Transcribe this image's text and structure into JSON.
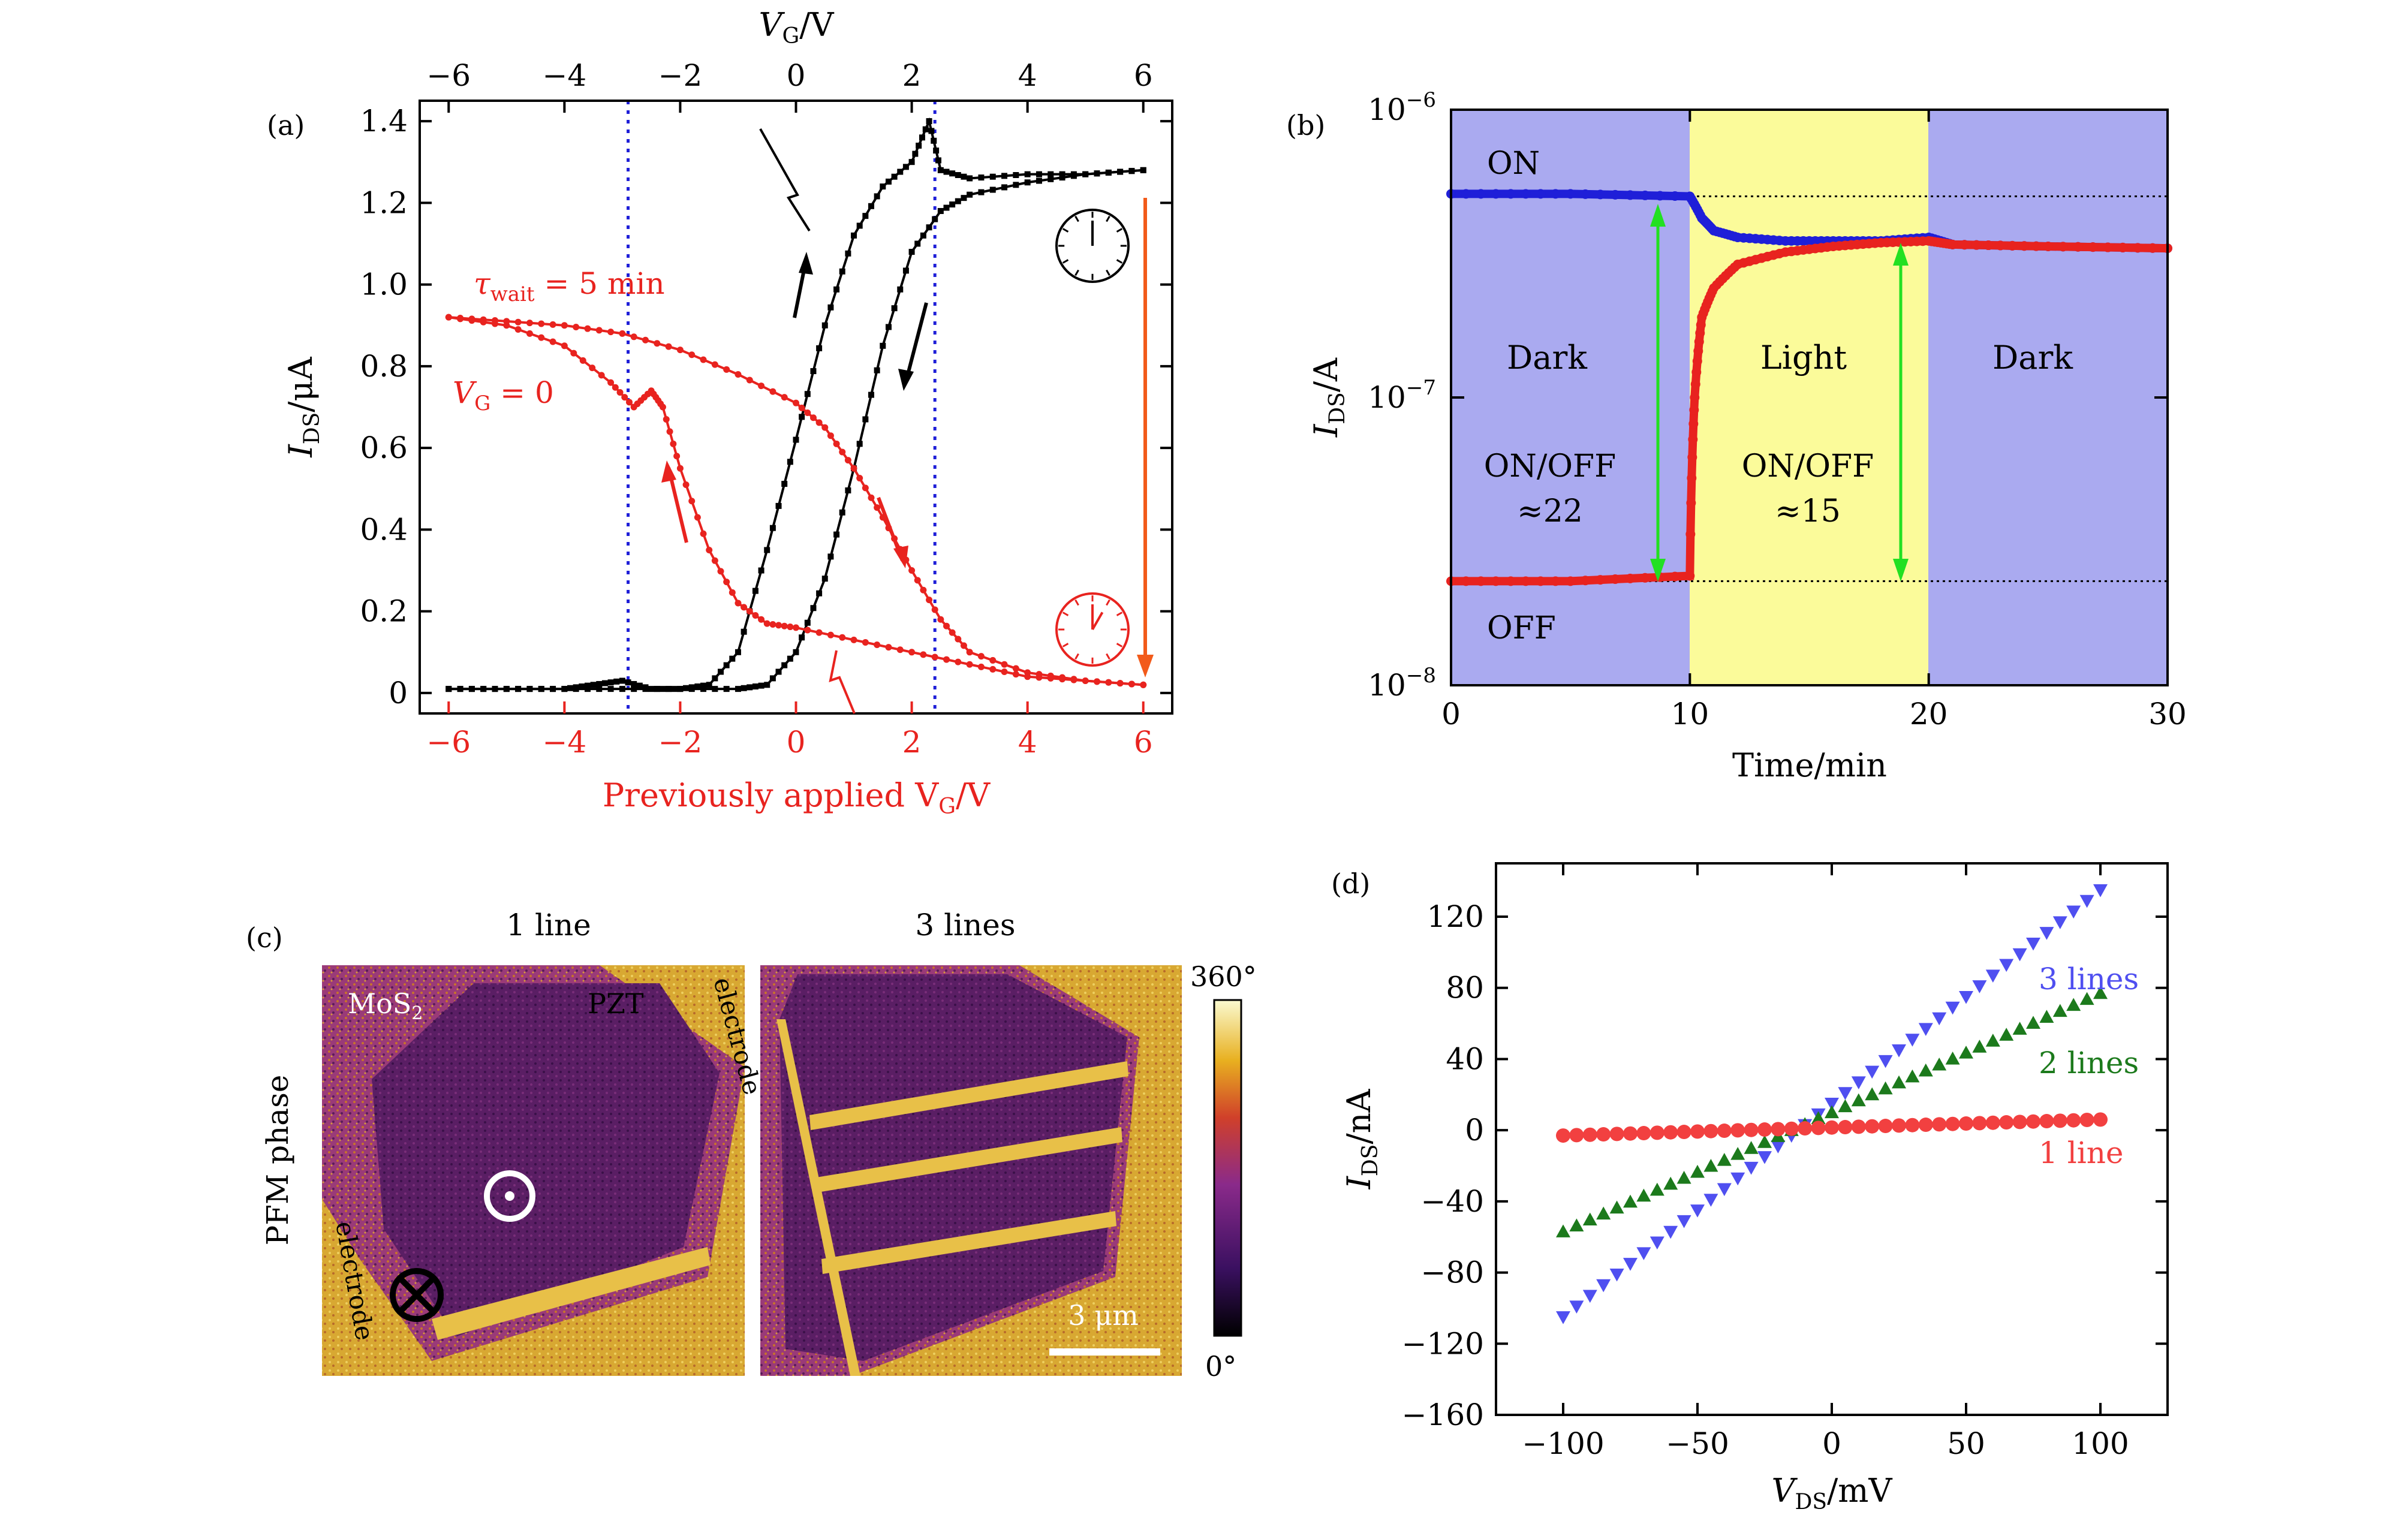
{
  "colors": {
    "black": "#000000",
    "red": "#e8231f",
    "blue_dot": "#1f1fd8",
    "green_arrow": "#22e022",
    "orange_arrow": "#f25a1a",
    "dark_bg": "#aaaaf0",
    "light_bg": "#fbfb9a",
    "series_blue": "#4f4ff0",
    "series_green": "#1c7a1c",
    "series_red": "#f24040"
  },
  "panels": {
    "a": {
      "label": "(a)",
      "top_axis_label": "V",
      "top_axis_sub": "G",
      "top_axis_unit": "/V",
      "bottom_axis_label": "Previously applied V",
      "bottom_axis_sub": "G",
      "bottom_axis_unit": "/V",
      "y_label": "I",
      "y_sub": "DS",
      "y_unit": "/μA",
      "tau_label": "τ",
      "tau_sub": "wait",
      "tau_value": " = 5 min",
      "vg_label": "V",
      "vg_sub": "G",
      "vg_value": " = 0",
      "x_ticks": [
        "−6",
        "−4",
        "−2",
        "0",
        "2",
        "4",
        "6"
      ],
      "y_ticks": [
        "0",
        "0.2",
        "0.4",
        "0.6",
        "0.8",
        "1.0",
        "1.2",
        "1.4"
      ],
      "clock_icons": [
        "clock-icon-black",
        "clock-icon-red"
      ]
    },
    "b": {
      "label": "(b)",
      "x_label": "Time/min",
      "y_label": "I",
      "y_sub": "DS",
      "y_unit": "/A",
      "x_ticks": [
        "0",
        "10",
        "20",
        "30"
      ],
      "y_ticks_base": "10",
      "y_ticks_exp": [
        "−8",
        "−7",
        "−6"
      ],
      "regions": [
        "Dark",
        "Light",
        "Dark"
      ],
      "on_label": "ON",
      "off_label": "OFF",
      "ratio1_line1": "ON/OFF",
      "ratio1_line2": "≈22",
      "ratio2_line1": "ON/OFF",
      "ratio2_line2": "≈15"
    },
    "c": {
      "label": "(c)",
      "title_left": "1 line",
      "title_right": "3 lines",
      "side_label": "PFM phase",
      "mos2_label": "MoS",
      "mos2_sub": "2",
      "pzt_label": "PZT",
      "electrode_top": "electrode",
      "electrode_bottom": "electrode",
      "scale_bar": "3 μm",
      "colorbar_max": "360°",
      "colorbar_min": "0°"
    },
    "d": {
      "label": "(d)",
      "x_label": "V",
      "x_sub": "DS",
      "x_unit": "/mV",
      "y_label": "I",
      "y_sub": "DS",
      "y_unit": "/nA",
      "x_ticks": [
        "−100",
        "−50",
        "0",
        "50",
        "100"
      ],
      "y_ticks": [
        "−160",
        "−120",
        "−80",
        "−40",
        "0",
        "40",
        "80",
        "120"
      ],
      "legend": [
        "3 lines",
        "2 lines",
        "1 line"
      ]
    }
  },
  "chart_data": [
    {
      "panel": "a",
      "type": "line",
      "xlim": [
        -6.5,
        6.5
      ],
      "ylim": [
        -0.05,
        1.45
      ],
      "vertical_lines": [
        -2.9,
        2.4
      ],
      "series": [
        {
          "color": "black",
          "x": [
            -6,
            -5,
            -4,
            -3.5,
            -3,
            -2.5,
            -2,
            -1.5,
            -1,
            -0.5,
            0,
            0.5,
            1,
            1.5,
            2,
            2.3,
            2.5,
            3,
            4,
            5,
            6
          ],
          "y": [
            0.01,
            0.01,
            0.01,
            0.02,
            0.03,
            0.01,
            0.01,
            0.02,
            0.1,
            0.35,
            0.62,
            0.9,
            1.12,
            1.24,
            1.3,
            1.4,
            1.28,
            1.26,
            1.27,
            1.27,
            1.28
          ]
        },
        {
          "color": "black",
          "x": [
            6,
            5,
            4,
            3,
            2.5,
            2,
            1.5,
            1,
            0.5,
            0,
            -0.5,
            -1,
            -2,
            -3,
            -4,
            -5,
            -6
          ],
          "y": [
            1.28,
            1.27,
            1.25,
            1.22,
            1.18,
            1.08,
            0.85,
            0.55,
            0.28,
            0.1,
            0.02,
            0.01,
            0.01,
            0.01,
            0.01,
            0.01,
            0.01
          ]
        },
        {
          "color": "red",
          "x": [
            -6,
            -5,
            -4,
            -3,
            -2,
            -1,
            0,
            0.5,
            1,
            1.5,
            2,
            2.5,
            3,
            4,
            5,
            6
          ],
          "y": [
            0.92,
            0.91,
            0.9,
            0.88,
            0.84,
            0.78,
            0.71,
            0.65,
            0.55,
            0.43,
            0.3,
            0.18,
            0.1,
            0.05,
            0.03,
            0.02
          ]
        },
        {
          "color": "red",
          "x": [
            6,
            5,
            4,
            3,
            2,
            1,
            0,
            -0.5,
            -1,
            -1.5,
            -2,
            -2.3,
            -2.5,
            -2.8,
            -3.2,
            -4,
            -5,
            -6
          ],
          "y": [
            0.02,
            0.03,
            0.04,
            0.07,
            0.1,
            0.13,
            0.16,
            0.17,
            0.22,
            0.35,
            0.55,
            0.7,
            0.74,
            0.7,
            0.76,
            0.85,
            0.9,
            0.92
          ]
        }
      ]
    },
    {
      "panel": "b",
      "type": "line",
      "y_scale": "log",
      "xlim": [
        0,
        30
      ],
      "ylim": [
        1e-08,
        1e-06
      ],
      "regions": [
        {
          "label": "Dark",
          "x": [
            0,
            10
          ]
        },
        {
          "label": "Light",
          "x": [
            10,
            20
          ]
        },
        {
          "label": "Dark",
          "x": [
            20,
            30
          ]
        }
      ],
      "reference_lines": [
        5e-07,
        2.3e-08
      ],
      "series": [
        {
          "color": "blue_dot",
          "x": [
            0,
            5,
            10,
            10.5,
            11,
            12,
            14,
            16,
            18,
            20,
            21,
            25,
            30
          ],
          "y": [
            5.1e-07,
            5.1e-07,
            5e-07,
            4.2e-07,
            3.8e-07,
            3.6e-07,
            3.5e-07,
            3.5e-07,
            3.5e-07,
            3.6e-07,
            3.4e-07,
            3.35e-07,
            3.3e-07
          ]
        },
        {
          "color": "red",
          "x": [
            0,
            5,
            10,
            10.2,
            10.5,
            11,
            12,
            14,
            16,
            18,
            20,
            21,
            25,
            30
          ],
          "y": [
            2.3e-08,
            2.3e-08,
            2.4e-08,
            1e-07,
            1.9e-07,
            2.4e-07,
            2.9e-07,
            3.2e-07,
            3.35e-07,
            3.45e-07,
            3.5e-07,
            3.4e-07,
            3.35e-07,
            3.3e-07
          ]
        }
      ]
    },
    {
      "panel": "d",
      "type": "scatter",
      "xlim": [
        -125,
        125
      ],
      "ylim": [
        -160,
        150
      ],
      "series": [
        {
          "name": "3 lines",
          "color": "series_blue",
          "marker": "triangle-down",
          "x": [
            -100,
            100
          ],
          "y": [
            -105,
            135
          ]
        },
        {
          "name": "2 lines",
          "color": "series_green",
          "marker": "triangle-up",
          "x": [
            -100,
            100
          ],
          "y": [
            -57,
            77
          ]
        },
        {
          "name": "1 line",
          "color": "series_red",
          "marker": "circle",
          "x": [
            -100,
            100
          ],
          "y": [
            -3,
            6
          ]
        }
      ]
    }
  ]
}
